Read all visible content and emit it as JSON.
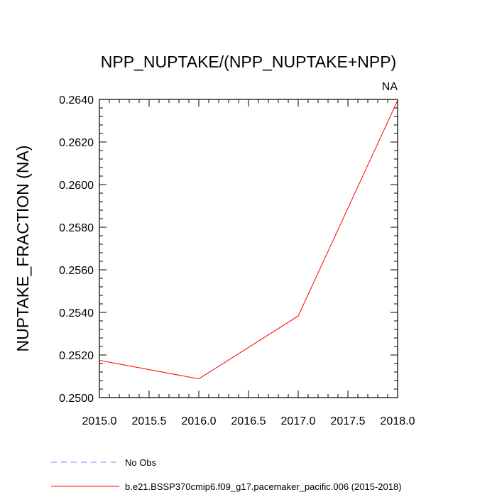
{
  "chart_data": {
    "type": "line",
    "title": "NPP_NUPTAKE/(NPP_NUPTAKE+NPP)",
    "corner_label": "NA",
    "xlabel": "",
    "ylabel": "NUPTAKE_FRACTION  (NA)",
    "xlim": [
      2015.0,
      2018.0
    ],
    "ylim": [
      0.25,
      0.264
    ],
    "x_ticks": [
      "2015.0",
      "2015.5",
      "2016.0",
      "2016.5",
      "2017.0",
      "2017.5",
      "2018.0"
    ],
    "y_ticks": [
      "0.2500",
      "0.2520",
      "0.2540",
      "0.2560",
      "0.2580",
      "0.2600",
      "0.2620",
      "0.2640"
    ],
    "grid": false,
    "legend_position": "bottom",
    "series": [
      {
        "name": "No Obs",
        "color": "#8080ff",
        "style": "dashed",
        "x": [],
        "y": []
      },
      {
        "name": "b.e21.BSSP370cmip6.f09_g17.pacemaker_pacific.006 (2015-2018)",
        "color": "#ff0000",
        "style": "solid",
        "x": [
          2015.0,
          2016.0,
          2017.0,
          2018.0
        ],
        "y": [
          0.25175,
          0.25088,
          0.25383,
          0.26395
        ]
      }
    ]
  }
}
